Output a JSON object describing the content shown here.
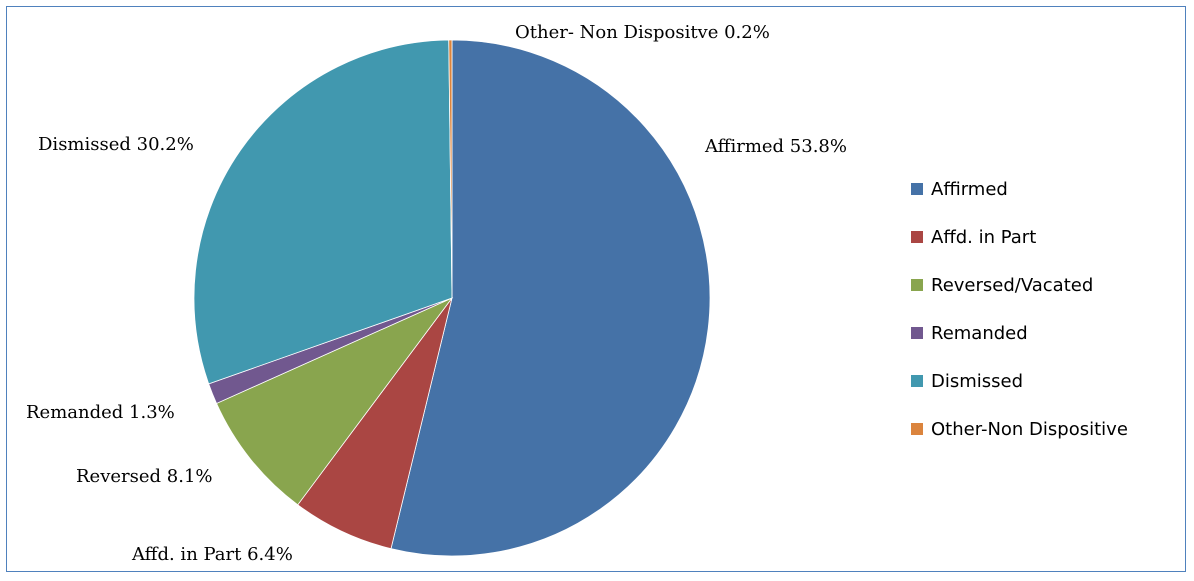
{
  "chart_data": {
    "type": "pie",
    "slices": [
      {
        "name": "Affirmed",
        "value": 53.8,
        "color": "#4572a7",
        "label": "Affirmed 53.8%"
      },
      {
        "name": "Affd. in Part",
        "value": 6.4,
        "color": "#aa4643",
        "label": "Affd. in Part 6.4%"
      },
      {
        "name": "Reversed/Vacated",
        "value": 8.1,
        "color": "#89a54e",
        "label": "Reversed 8.1%"
      },
      {
        "name": "Remanded",
        "value": 1.3,
        "color": "#71588f",
        "label": "Remanded 1.3%"
      },
      {
        "name": "Dismissed",
        "value": 30.2,
        "color": "#4198af",
        "label": "Dismissed 30.2%"
      },
      {
        "name": "Other-Non Dispositive",
        "value": 0.2,
        "color": "#db843d",
        "label": "Other- Non Dispositve 0.2%"
      }
    ],
    "legend_position": "right"
  }
}
